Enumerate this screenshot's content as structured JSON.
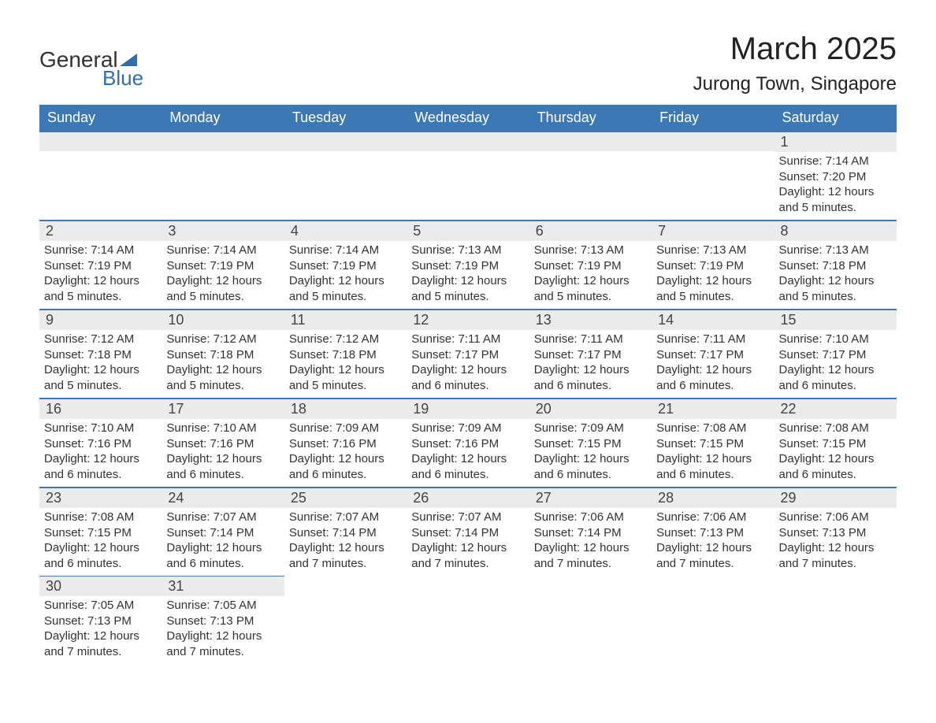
{
  "logo": {
    "text1": "General",
    "text2": "Blue",
    "accent_color": "#2f6fad"
  },
  "title": "March 2025",
  "location": "Jurong Town, Singapore",
  "colors": {
    "header_bg": "#3b78b5",
    "header_fg": "#ffffff",
    "daynum_bg": "#ebebeb",
    "row_border": "#3b78b5",
    "text": "#333333",
    "background": "#ffffff"
  },
  "typography": {
    "title_fontsize": 40,
    "location_fontsize": 24,
    "weekday_fontsize": 18,
    "daynum_fontsize": 18,
    "body_fontsize": 15
  },
  "weekdays": [
    "Sunday",
    "Monday",
    "Tuesday",
    "Wednesday",
    "Thursday",
    "Friday",
    "Saturday"
  ],
  "weeks": [
    [
      null,
      null,
      null,
      null,
      null,
      null,
      {
        "n": "1",
        "sr": "7:14 AM",
        "ss": "7:20 PM",
        "dl": "12 hours and 5 minutes."
      }
    ],
    [
      {
        "n": "2",
        "sr": "7:14 AM",
        "ss": "7:19 PM",
        "dl": "12 hours and 5 minutes."
      },
      {
        "n": "3",
        "sr": "7:14 AM",
        "ss": "7:19 PM",
        "dl": "12 hours and 5 minutes."
      },
      {
        "n": "4",
        "sr": "7:14 AM",
        "ss": "7:19 PM",
        "dl": "12 hours and 5 minutes."
      },
      {
        "n": "5",
        "sr": "7:13 AM",
        "ss": "7:19 PM",
        "dl": "12 hours and 5 minutes."
      },
      {
        "n": "6",
        "sr": "7:13 AM",
        "ss": "7:19 PM",
        "dl": "12 hours and 5 minutes."
      },
      {
        "n": "7",
        "sr": "7:13 AM",
        "ss": "7:19 PM",
        "dl": "12 hours and 5 minutes."
      },
      {
        "n": "8",
        "sr": "7:13 AM",
        "ss": "7:18 PM",
        "dl": "12 hours and 5 minutes."
      }
    ],
    [
      {
        "n": "9",
        "sr": "7:12 AM",
        "ss": "7:18 PM",
        "dl": "12 hours and 5 minutes."
      },
      {
        "n": "10",
        "sr": "7:12 AM",
        "ss": "7:18 PM",
        "dl": "12 hours and 5 minutes."
      },
      {
        "n": "11",
        "sr": "7:12 AM",
        "ss": "7:18 PM",
        "dl": "12 hours and 5 minutes."
      },
      {
        "n": "12",
        "sr": "7:11 AM",
        "ss": "7:17 PM",
        "dl": "12 hours and 6 minutes."
      },
      {
        "n": "13",
        "sr": "7:11 AM",
        "ss": "7:17 PM",
        "dl": "12 hours and 6 minutes."
      },
      {
        "n": "14",
        "sr": "7:11 AM",
        "ss": "7:17 PM",
        "dl": "12 hours and 6 minutes."
      },
      {
        "n": "15",
        "sr": "7:10 AM",
        "ss": "7:17 PM",
        "dl": "12 hours and 6 minutes."
      }
    ],
    [
      {
        "n": "16",
        "sr": "7:10 AM",
        "ss": "7:16 PM",
        "dl": "12 hours and 6 minutes."
      },
      {
        "n": "17",
        "sr": "7:10 AM",
        "ss": "7:16 PM",
        "dl": "12 hours and 6 minutes."
      },
      {
        "n": "18",
        "sr": "7:09 AM",
        "ss": "7:16 PM",
        "dl": "12 hours and 6 minutes."
      },
      {
        "n": "19",
        "sr": "7:09 AM",
        "ss": "7:16 PM",
        "dl": "12 hours and 6 minutes."
      },
      {
        "n": "20",
        "sr": "7:09 AM",
        "ss": "7:15 PM",
        "dl": "12 hours and 6 minutes."
      },
      {
        "n": "21",
        "sr": "7:08 AM",
        "ss": "7:15 PM",
        "dl": "12 hours and 6 minutes."
      },
      {
        "n": "22",
        "sr": "7:08 AM",
        "ss": "7:15 PM",
        "dl": "12 hours and 6 minutes."
      }
    ],
    [
      {
        "n": "23",
        "sr": "7:08 AM",
        "ss": "7:15 PM",
        "dl": "12 hours and 6 minutes."
      },
      {
        "n": "24",
        "sr": "7:07 AM",
        "ss": "7:14 PM",
        "dl": "12 hours and 6 minutes."
      },
      {
        "n": "25",
        "sr": "7:07 AM",
        "ss": "7:14 PM",
        "dl": "12 hours and 7 minutes."
      },
      {
        "n": "26",
        "sr": "7:07 AM",
        "ss": "7:14 PM",
        "dl": "12 hours and 7 minutes."
      },
      {
        "n": "27",
        "sr": "7:06 AM",
        "ss": "7:14 PM",
        "dl": "12 hours and 7 minutes."
      },
      {
        "n": "28",
        "sr": "7:06 AM",
        "ss": "7:13 PM",
        "dl": "12 hours and 7 minutes."
      },
      {
        "n": "29",
        "sr": "7:06 AM",
        "ss": "7:13 PM",
        "dl": "12 hours and 7 minutes."
      }
    ],
    [
      {
        "n": "30",
        "sr": "7:05 AM",
        "ss": "7:13 PM",
        "dl": "12 hours and 7 minutes."
      },
      {
        "n": "31",
        "sr": "7:05 AM",
        "ss": "7:13 PM",
        "dl": "12 hours and 7 minutes."
      },
      null,
      null,
      null,
      null,
      null
    ]
  ],
  "labels": {
    "sunrise": "Sunrise: ",
    "sunset": "Sunset: ",
    "daylight": "Daylight: "
  }
}
